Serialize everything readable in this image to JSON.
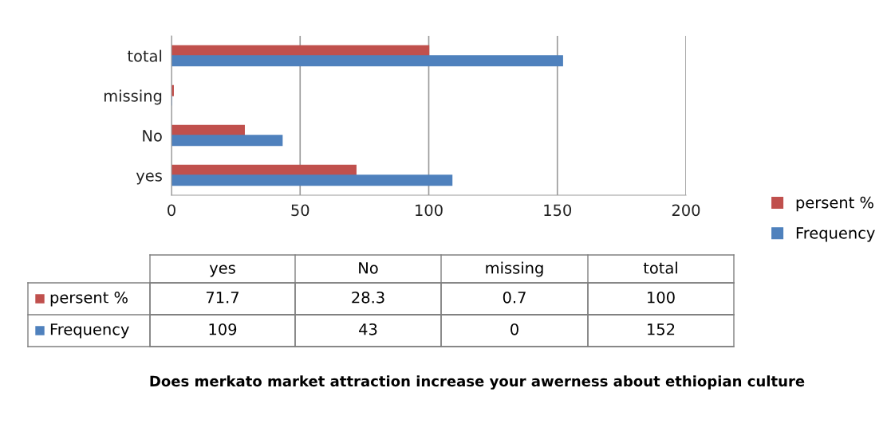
{
  "chart_data": [
    {
      "type": "bar",
      "orientation": "horizontal",
      "title": "Does merkato market attraction increase your awerness about ethiopian culture",
      "categories": [
        "total",
        "missing",
        "No",
        "yes"
      ],
      "series": [
        {
          "name": "persent %",
          "color": "#c0504d",
          "values": [
            100,
            0.7,
            28.3,
            71.7
          ]
        },
        {
          "name": "Frequency",
          "color": "#4f81bd",
          "values": [
            152,
            0,
            43,
            109
          ]
        }
      ],
      "xlim": [
        0,
        200
      ],
      "xticks": [
        0,
        50,
        100,
        150,
        200
      ],
      "grid": "x",
      "legend": "right"
    },
    {
      "type": "other",
      "categories": [
        "yes",
        "No",
        "missing",
        "total"
      ],
      "series": [
        {
          "name": "persent %",
          "color": "#c0504d",
          "values": [
            71.7,
            28.3,
            0.7,
            100
          ]
        },
        {
          "name": "Frequency",
          "color": "#4f81bd",
          "values": [
            109,
            43,
            0,
            152
          ]
        }
      ],
      "legend": "left",
      "data_labels": true
    }
  ]
}
